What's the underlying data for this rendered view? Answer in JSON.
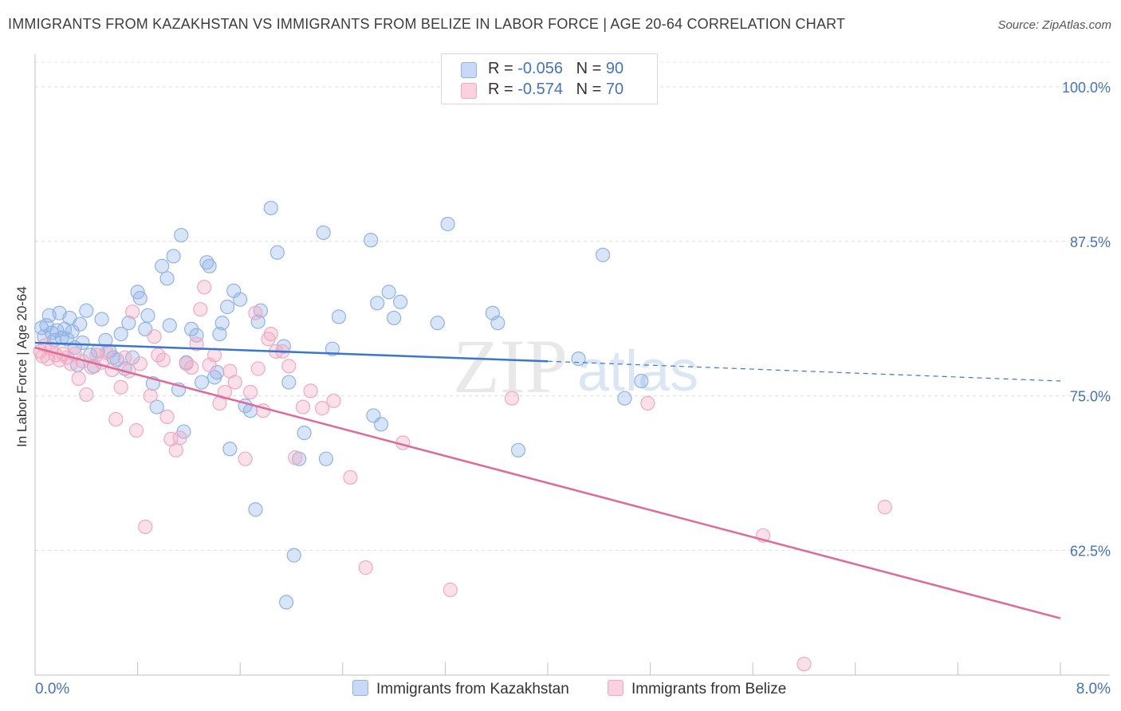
{
  "title": "IMMIGRANTS FROM KAZAKHSTAN VS IMMIGRANTS FROM BELIZE IN LABOR FORCE | AGE 20-64 CORRELATION CHART",
  "source": "Source: ZipAtlas.com",
  "watermark": {
    "zip": "ZIP",
    "atlas": "atlas"
  },
  "legend_top": {
    "rows": [
      {
        "r_label": "R = ",
        "r_value": "-0.056",
        "n_label": "N = ",
        "n_value": "90"
      },
      {
        "r_label": "R = ",
        "r_value": " -0.574",
        "n_label": "N = ",
        "n_value": "70"
      }
    ]
  },
  "chart_data": {
    "type": "scatter",
    "title": "IMMIGRANTS FROM KAZAKHSTAN VS IMMIGRANTS FROM BELIZE IN LABOR FORCE | AGE 20-64 CORRELATION CHART",
    "xlabel": "",
    "ylabel": "In Labor Force | Age 20-64",
    "xlim": [
      0,
      8
    ],
    "ylim": [
      52.4,
      102
    ],
    "x_tick_labels": [
      "0.0%",
      "8.0%"
    ],
    "y_ticks": [
      62.5,
      75.0,
      87.5,
      100.0
    ],
    "y_tick_labels": [
      "62.5%",
      "75.0%",
      "87.5%",
      "100.0%"
    ],
    "grid": true,
    "legend_position": "bottom",
    "colors": {
      "kazakhstan": "#8fb3e8",
      "kazakhstan_line": "#3a76d0",
      "belize": "#f2a8c0",
      "belize_line": "#e06a96",
      "axis_label": "#4472c4"
    },
    "series": [
      {
        "name": "Immigrants from Kazakhstan",
        "r": -0.056,
        "n": 90,
        "trend": {
          "x": [
            0,
            4,
            8
          ],
          "y": [
            79.3,
            77.8,
            76.2
          ],
          "solid_until": 4
        },
        "points": [
          [
            0.05,
            80.5
          ],
          [
            0.07,
            79.8
          ],
          [
            0.09,
            80.7
          ],
          [
            0.11,
            81.5
          ],
          [
            0.13,
            80.1
          ],
          [
            0.15,
            79.5
          ],
          [
            0.17,
            80.3
          ],
          [
            0.19,
            81.7
          ],
          [
            0.21,
            79.7
          ],
          [
            0.23,
            80.4
          ],
          [
            0.25,
            79.6
          ],
          [
            0.27,
            81.3
          ],
          [
            0.29,
            80.2
          ],
          [
            0.31,
            78.9
          ],
          [
            0.33,
            77.5
          ],
          [
            0.35,
            80.8
          ],
          [
            0.37,
            79.3
          ],
          [
            0.4,
            81.9
          ],
          [
            0.43,
            78.3
          ],
          [
            0.46,
            77.4
          ],
          [
            0.49,
            78.6
          ],
          [
            0.52,
            81.2
          ],
          [
            0.55,
            79.5
          ],
          [
            0.58,
            78.6
          ],
          [
            0.61,
            78.1
          ],
          [
            0.64,
            77.9
          ],
          [
            0.67,
            80.0
          ],
          [
            0.7,
            77.2
          ],
          [
            0.73,
            80.9
          ],
          [
            0.76,
            78.1
          ],
          [
            0.8,
            83.4
          ],
          [
            0.82,
            82.9
          ],
          [
            0.86,
            80.4
          ],
          [
            0.88,
            81.5
          ],
          [
            0.92,
            76.0
          ],
          [
            0.95,
            74.1
          ],
          [
            0.99,
            85.5
          ],
          [
            1.03,
            84.5
          ],
          [
            1.05,
            80.7
          ],
          [
            1.08,
            86.3
          ],
          [
            1.12,
            75.5
          ],
          [
            1.14,
            88.0
          ],
          [
            1.16,
            72.1
          ],
          [
            1.18,
            77.7
          ],
          [
            1.22,
            80.4
          ],
          [
            1.26,
            79.9
          ],
          [
            1.3,
            76.1
          ],
          [
            1.34,
            85.8
          ],
          [
            1.36,
            85.5
          ],
          [
            1.4,
            76.5
          ],
          [
            1.42,
            76.9
          ],
          [
            1.44,
            80.0
          ],
          [
            1.46,
            80.9
          ],
          [
            1.5,
            82.2
          ],
          [
            1.52,
            70.7
          ],
          [
            1.55,
            83.5
          ],
          [
            1.6,
            82.8
          ],
          [
            1.64,
            74.2
          ],
          [
            1.68,
            73.8
          ],
          [
            1.72,
            65.8
          ],
          [
            1.74,
            81.0
          ],
          [
            1.76,
            81.9
          ],
          [
            1.84,
            90.2
          ],
          [
            1.89,
            86.6
          ],
          [
            1.94,
            79.0
          ],
          [
            1.96,
            58.3
          ],
          [
            1.98,
            76.1
          ],
          [
            2.02,
            62.1
          ],
          [
            2.06,
            69.9
          ],
          [
            2.1,
            72.0
          ],
          [
            2.25,
            88.2
          ],
          [
            2.27,
            69.9
          ],
          [
            2.32,
            78.8
          ],
          [
            2.37,
            81.4
          ],
          [
            2.62,
            87.6
          ],
          [
            2.64,
            73.4
          ],
          [
            2.67,
            82.5
          ],
          [
            2.7,
            72.7
          ],
          [
            2.76,
            83.4
          ],
          [
            2.8,
            81.3
          ],
          [
            2.85,
            82.6
          ],
          [
            3.14,
            80.9
          ],
          [
            3.22,
            88.9
          ],
          [
            3.57,
            81.7
          ],
          [
            3.61,
            80.9
          ],
          [
            3.77,
            70.6
          ],
          [
            4.24,
            78.0
          ],
          [
            4.43,
            86.4
          ],
          [
            4.6,
            74.8
          ],
          [
            4.73,
            76.2
          ]
        ]
      },
      {
        "name": "Immigrants from Belize",
        "r": -0.574,
        "n": 70,
        "trend": {
          "x": [
            0,
            8
          ],
          "y": [
            78.9,
            57.0
          ]
        },
        "points": [
          [
            0.04,
            78.6
          ],
          [
            0.06,
            78.2
          ],
          [
            0.08,
            79.1
          ],
          [
            0.1,
            78.0
          ],
          [
            0.13,
            78.8
          ],
          [
            0.16,
            78.3
          ],
          [
            0.19,
            77.9
          ],
          [
            0.22,
            78.4
          ],
          [
            0.25,
            78.1
          ],
          [
            0.28,
            77.6
          ],
          [
            0.31,
            78.4
          ],
          [
            0.34,
            76.4
          ],
          [
            0.37,
            77.8
          ],
          [
            0.4,
            75.1
          ],
          [
            0.44,
            77.3
          ],
          [
            0.48,
            78.3
          ],
          [
            0.52,
            77.7
          ],
          [
            0.56,
            78.5
          ],
          [
            0.6,
            77.1
          ],
          [
            0.63,
            73.1
          ],
          [
            0.67,
            75.7
          ],
          [
            0.7,
            78.1
          ],
          [
            0.73,
            77.0
          ],
          [
            0.76,
            81.8
          ],
          [
            0.79,
            72.2
          ],
          [
            0.82,
            77.6
          ],
          [
            0.86,
            64.4
          ],
          [
            0.9,
            75.0
          ],
          [
            0.93,
            79.8
          ],
          [
            0.96,
            78.3
          ],
          [
            1.0,
            77.9
          ],
          [
            1.03,
            73.3
          ],
          [
            1.06,
            71.5
          ],
          [
            1.1,
            70.6
          ],
          [
            1.13,
            71.6
          ],
          [
            1.18,
            77.6
          ],
          [
            1.22,
            77.3
          ],
          [
            1.26,
            79.2
          ],
          [
            1.29,
            82.0
          ],
          [
            1.32,
            83.8
          ],
          [
            1.36,
            77.5
          ],
          [
            1.4,
            78.3
          ],
          [
            1.44,
            74.4
          ],
          [
            1.48,
            75.3
          ],
          [
            1.52,
            77.0
          ],
          [
            1.56,
            76.1
          ],
          [
            1.64,
            69.9
          ],
          [
            1.68,
            75.3
          ],
          [
            1.72,
            81.7
          ],
          [
            1.74,
            77.2
          ],
          [
            1.78,
            73.8
          ],
          [
            1.82,
            79.6
          ],
          [
            1.84,
            80.0
          ],
          [
            1.88,
            78.6
          ],
          [
            1.93,
            78.6
          ],
          [
            1.98,
            77.4
          ],
          [
            2.03,
            70.0
          ],
          [
            2.09,
            74.1
          ],
          [
            2.15,
            75.4
          ],
          [
            2.24,
            74.0
          ],
          [
            2.33,
            74.6
          ],
          [
            2.46,
            68.4
          ],
          [
            2.58,
            61.1
          ],
          [
            2.87,
            71.2
          ],
          [
            3.24,
            59.3
          ],
          [
            3.72,
            74.8
          ],
          [
            4.78,
            74.4
          ],
          [
            5.68,
            63.7
          ],
          [
            6.0,
            53.3
          ],
          [
            6.63,
            66.0
          ]
        ]
      }
    ]
  }
}
